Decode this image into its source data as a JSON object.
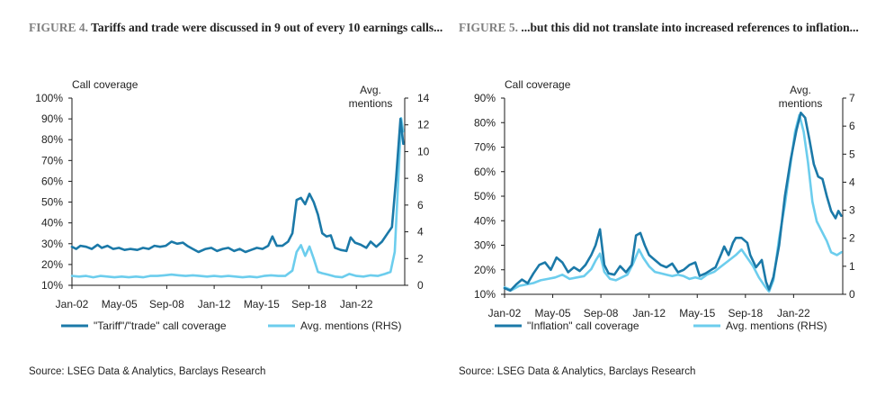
{
  "figures": [
    {
      "id": "fig4",
      "title_prefix": "FIGURE 4.",
      "title_text": "Tariffs and trade were discussed in 9 out of every 10 earnings calls...",
      "source": "Source: LSEG Data & Analytics, Barclays Research"
    },
    {
      "id": "fig5",
      "title_prefix": "FIGURE 5.",
      "title_text": "...but this did not translate into increased references to inflation...",
      "source": "Source: LSEG Data & Analytics, Barclays Research"
    }
  ],
  "colors": {
    "dark": "#1B79A8",
    "light": "#6CCDED",
    "axis": "#1a1a1a"
  },
  "chart_data": [
    {
      "type": "line",
      "title": "",
      "left_axis_label": "Call coverage",
      "right_axis_label": "Avg. mentions",
      "x_ticks": [
        "Jan-02",
        "May-05",
        "Sep-08",
        "Jan-12",
        "May-15",
        "Sep-18",
        "Jan-22"
      ],
      "x_range": [
        2002.0,
        2025.4
      ],
      "y_left": {
        "min": 10,
        "max": 100,
        "step": 10,
        "suffix": "%"
      },
      "y_right": {
        "min": 0,
        "max": 14,
        "step": 2
      },
      "legend_position": "bottom",
      "series": [
        {
          "name": "\"Tariff\"/\"trade\" call coverage",
          "axis": "left",
          "points": [
            [
              2002.0,
              28.5
            ],
            [
              2002.3,
              27.5
            ],
            [
              2002.6,
              29
            ],
            [
              2003.0,
              28.5
            ],
            [
              2003.4,
              27.5
            ],
            [
              2003.8,
              29.5
            ],
            [
              2004.1,
              28
            ],
            [
              2004.5,
              29
            ],
            [
              2004.9,
              27.5
            ],
            [
              2005.3,
              28
            ],
            [
              2005.7,
              27
            ],
            [
              2006.1,
              27.5
            ],
            [
              2006.6,
              27
            ],
            [
              2007.0,
              28
            ],
            [
              2007.4,
              27.5
            ],
            [
              2007.8,
              29
            ],
            [
              2008.2,
              28.5
            ],
            [
              2008.6,
              29
            ],
            [
              2009.0,
              31
            ],
            [
              2009.4,
              30
            ],
            [
              2009.8,
              30.5
            ],
            [
              2010.1,
              29
            ],
            [
              2010.5,
              27.5
            ],
            [
              2010.9,
              26
            ],
            [
              2011.4,
              27.5
            ],
            [
              2011.8,
              28
            ],
            [
              2012.2,
              26.5
            ],
            [
              2012.6,
              27.5
            ],
            [
              2013.0,
              28
            ],
            [
              2013.4,
              26.5
            ],
            [
              2013.8,
              27.5
            ],
            [
              2014.2,
              26
            ],
            [
              2014.6,
              27
            ],
            [
              2015.0,
              28
            ],
            [
              2015.4,
              27.5
            ],
            [
              2015.8,
              29
            ],
            [
              2016.1,
              33.5
            ],
            [
              2016.4,
              29
            ],
            [
              2016.8,
              29
            ],
            [
              2017.2,
              31
            ],
            [
              2017.5,
              35
            ],
            [
              2017.8,
              51
            ],
            [
              2018.1,
              52
            ],
            [
              2018.4,
              49
            ],
            [
              2018.7,
              54
            ],
            [
              2019.0,
              50
            ],
            [
              2019.3,
              44
            ],
            [
              2019.6,
              35
            ],
            [
              2019.9,
              33.5
            ],
            [
              2020.2,
              34
            ],
            [
              2020.5,
              28
            ],
            [
              2020.9,
              27
            ],
            [
              2021.3,
              26.5
            ],
            [
              2021.6,
              33
            ],
            [
              2021.9,
              30.5
            ],
            [
              2022.3,
              29.5
            ],
            [
              2022.7,
              28
            ],
            [
              2023.0,
              31
            ],
            [
              2023.4,
              28.5
            ],
            [
              2023.8,
              31
            ],
            [
              2024.2,
              35
            ],
            [
              2024.5,
              38
            ],
            [
              2024.8,
              62
            ],
            [
              2025.1,
              90
            ],
            [
              2025.3,
              78
            ]
          ]
        },
        {
          "name": "Avg. mentions (RHS)",
          "axis": "right",
          "points": [
            [
              2002.0,
              0.7
            ],
            [
              2002.5,
              0.65
            ],
            [
              2003.0,
              0.7
            ],
            [
              2003.5,
              0.6
            ],
            [
              2004.0,
              0.7
            ],
            [
              2004.5,
              0.65
            ],
            [
              2005.0,
              0.6
            ],
            [
              2005.5,
              0.65
            ],
            [
              2006.0,
              0.6
            ],
            [
              2006.5,
              0.65
            ],
            [
              2007.0,
              0.6
            ],
            [
              2007.5,
              0.7
            ],
            [
              2008.0,
              0.7
            ],
            [
              2008.5,
              0.75
            ],
            [
              2009.0,
              0.8
            ],
            [
              2009.5,
              0.75
            ],
            [
              2010.0,
              0.7
            ],
            [
              2010.5,
              0.75
            ],
            [
              2011.0,
              0.7
            ],
            [
              2011.5,
              0.65
            ],
            [
              2012.0,
              0.7
            ],
            [
              2012.5,
              0.65
            ],
            [
              2013.0,
              0.7
            ],
            [
              2013.5,
              0.65
            ],
            [
              2014.0,
              0.6
            ],
            [
              2014.5,
              0.65
            ],
            [
              2015.0,
              0.6
            ],
            [
              2015.5,
              0.7
            ],
            [
              2016.0,
              0.75
            ],
            [
              2016.5,
              0.7
            ],
            [
              2017.0,
              0.7
            ],
            [
              2017.5,
              1.1
            ],
            [
              2017.8,
              2.5
            ],
            [
              2018.1,
              3.0
            ],
            [
              2018.4,
              2.2
            ],
            [
              2018.7,
              2.9
            ],
            [
              2019.0,
              2.0
            ],
            [
              2019.3,
              1.0
            ],
            [
              2019.6,
              0.9
            ],
            [
              2020.0,
              0.8
            ],
            [
              2020.5,
              0.65
            ],
            [
              2021.0,
              0.6
            ],
            [
              2021.5,
              0.85
            ],
            [
              2022.0,
              0.7
            ],
            [
              2022.5,
              0.65
            ],
            [
              2023.0,
              0.75
            ],
            [
              2023.5,
              0.7
            ],
            [
              2024.0,
              0.85
            ],
            [
              2024.4,
              1.0
            ],
            [
              2024.7,
              2.5
            ],
            [
              2024.95,
              8.0
            ],
            [
              2025.15,
              12.5
            ],
            [
              2025.3,
              11.5
            ]
          ]
        }
      ]
    },
    {
      "type": "line",
      "title": "",
      "left_axis_label": "Call coverage",
      "right_axis_label": "Avg. mentions",
      "x_ticks": [
        "Jan-02",
        "May-05",
        "Sep-08",
        "Jan-12",
        "May-15",
        "Sep-18",
        "Jan-22"
      ],
      "x_range": [
        2002.0,
        2025.4
      ],
      "y_left": {
        "min": 10,
        "max": 90,
        "step": 10,
        "suffix": "%"
      },
      "y_right": {
        "min": 0,
        "max": 7,
        "step": 1
      },
      "legend_position": "bottom",
      "series": [
        {
          "name": "\"Inflation\" call coverage",
          "axis": "left",
          "points": [
            [
              2002.0,
              12.5
            ],
            [
              2002.4,
              11.5
            ],
            [
              2002.8,
              14
            ],
            [
              2003.2,
              16
            ],
            [
              2003.6,
              14.5
            ],
            [
              2004.0,
              18.5
            ],
            [
              2004.4,
              22
            ],
            [
              2004.8,
              23
            ],
            [
              2005.2,
              20
            ],
            [
              2005.6,
              25
            ],
            [
              2006.0,
              23
            ],
            [
              2006.4,
              19
            ],
            [
              2006.8,
              21
            ],
            [
              2007.2,
              19.5
            ],
            [
              2007.6,
              22
            ],
            [
              2008.0,
              26
            ],
            [
              2008.3,
              30
            ],
            [
              2008.6,
              36.5
            ],
            [
              2008.9,
              22
            ],
            [
              2009.2,
              18.5
            ],
            [
              2009.6,
              18
            ],
            [
              2010.0,
              21.5
            ],
            [
              2010.4,
              19
            ],
            [
              2010.8,
              22
            ],
            [
              2011.1,
              34
            ],
            [
              2011.4,
              35
            ],
            [
              2011.7,
              30
            ],
            [
              2012.0,
              26
            ],
            [
              2012.4,
              24
            ],
            [
              2012.8,
              22
            ],
            [
              2013.2,
              21
            ],
            [
              2013.6,
              22.5
            ],
            [
              2014.0,
              19
            ],
            [
              2014.4,
              20
            ],
            [
              2014.8,
              22
            ],
            [
              2015.2,
              23
            ],
            [
              2015.5,
              17.5
            ],
            [
              2015.9,
              18.5
            ],
            [
              2016.3,
              20
            ],
            [
              2016.6,
              21
            ],
            [
              2017.0,
              26.5
            ],
            [
              2017.2,
              29.5
            ],
            [
              2017.5,
              26
            ],
            [
              2017.8,
              31
            ],
            [
              2018.0,
              33
            ],
            [
              2018.4,
              33
            ],
            [
              2018.8,
              31
            ],
            [
              2019.0,
              26
            ],
            [
              2019.4,
              21
            ],
            [
              2019.8,
              24
            ],
            [
              2020.1,
              15
            ],
            [
              2020.3,
              12
            ],
            [
              2020.6,
              17
            ],
            [
              2021.0,
              30
            ],
            [
              2021.4,
              50
            ],
            [
              2021.8,
              65
            ],
            [
              2022.2,
              77
            ],
            [
              2022.5,
              84
            ],
            [
              2022.8,
              82
            ],
            [
              2023.1,
              73
            ],
            [
              2023.4,
              63
            ],
            [
              2023.7,
              58
            ],
            [
              2024.0,
              57
            ],
            [
              2024.3,
              50
            ],
            [
              2024.6,
              44
            ],
            [
              2024.9,
              41
            ],
            [
              2025.1,
              44
            ],
            [
              2025.3,
              42
            ]
          ]
        },
        {
          "name": "Avg. mentions (RHS)",
          "axis": "right",
          "points": [
            [
              2002.0,
              0.25
            ],
            [
              2002.5,
              0.15
            ],
            [
              2003.0,
              0.3
            ],
            [
              2003.5,
              0.35
            ],
            [
              2004.0,
              0.4
            ],
            [
              2004.5,
              0.5
            ],
            [
              2005.0,
              0.55
            ],
            [
              2005.5,
              0.6
            ],
            [
              2006.0,
              0.7
            ],
            [
              2006.5,
              0.55
            ],
            [
              2007.0,
              0.6
            ],
            [
              2007.5,
              0.65
            ],
            [
              2008.0,
              0.9
            ],
            [
              2008.3,
              1.2
            ],
            [
              2008.6,
              1.45
            ],
            [
              2008.9,
              0.8
            ],
            [
              2009.3,
              0.55
            ],
            [
              2009.7,
              0.5
            ],
            [
              2010.1,
              0.6
            ],
            [
              2010.5,
              0.7
            ],
            [
              2010.9,
              1.1
            ],
            [
              2011.3,
              1.6
            ],
            [
              2011.6,
              1.3
            ],
            [
              2012.0,
              1.0
            ],
            [
              2012.4,
              0.8
            ],
            [
              2012.8,
              0.75
            ],
            [
              2013.2,
              0.7
            ],
            [
              2013.6,
              0.65
            ],
            [
              2014.0,
              0.7
            ],
            [
              2014.4,
              0.65
            ],
            [
              2014.8,
              0.55
            ],
            [
              2015.2,
              0.6
            ],
            [
              2015.6,
              0.55
            ],
            [
              2016.0,
              0.7
            ],
            [
              2016.5,
              0.8
            ],
            [
              2017.0,
              1.0
            ],
            [
              2017.5,
              1.2
            ],
            [
              2018.0,
              1.4
            ],
            [
              2018.4,
              1.6
            ],
            [
              2018.8,
              1.3
            ],
            [
              2019.2,
              1.0
            ],
            [
              2019.6,
              0.6
            ],
            [
              2020.0,
              0.3
            ],
            [
              2020.3,
              0.1
            ],
            [
              2020.6,
              0.5
            ],
            [
              2021.0,
              2.0
            ],
            [
              2021.4,
              3.2
            ],
            [
              2021.8,
              4.7
            ],
            [
              2022.1,
              5.8
            ],
            [
              2022.4,
              6.4
            ],
            [
              2022.7,
              5.8
            ],
            [
              2023.0,
              4.7
            ],
            [
              2023.3,
              3.3
            ],
            [
              2023.6,
              2.6
            ],
            [
              2024.0,
              2.2
            ],
            [
              2024.3,
              1.9
            ],
            [
              2024.6,
              1.5
            ],
            [
              2025.0,
              1.4
            ],
            [
              2025.3,
              1.5
            ]
          ]
        }
      ]
    }
  ]
}
